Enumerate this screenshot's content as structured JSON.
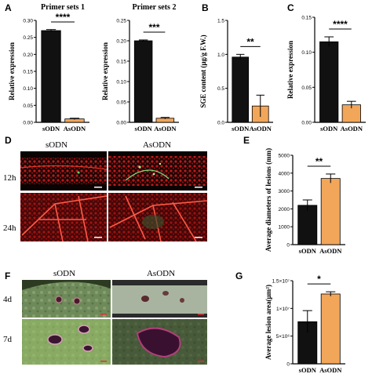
{
  "panel_letters": [
    "A",
    "B",
    "C",
    "D",
    "E",
    "F",
    "G"
  ],
  "colors": {
    "sODN": "#111111",
    "AsODN": "#f2a65a",
    "axis": "#000000"
  },
  "chart_data": [
    {
      "id": "A1",
      "type": "bar",
      "title": "Primer sets 1",
      "ylabel": "Relative expression",
      "xlabel": "",
      "categories": [
        "sODN",
        "AsODN"
      ],
      "values": [
        0.27,
        0.01
      ],
      "errors": [
        0.003,
        0.002
      ],
      "ylim": [
        0,
        0.3
      ],
      "yticks": [
        "0.00",
        "0.05",
        "0.10",
        "0.15",
        "0.20",
        "0.25",
        "0.30"
      ],
      "significance": "****"
    },
    {
      "id": "A2",
      "type": "bar",
      "title": "Primer sets 2",
      "ylabel": "Relative expression",
      "xlabel": "",
      "categories": [
        "sODN",
        "AsODN"
      ],
      "values": [
        0.2,
        0.01
      ],
      "errors": [
        0.002,
        0.002
      ],
      "ylim": [
        0,
        0.25
      ],
      "yticks": [
        "0.00",
        "0.05",
        "0.10",
        "0.15",
        "0.20",
        "0.25"
      ],
      "significance": "***"
    },
    {
      "id": "B",
      "type": "bar",
      "title": "",
      "ylabel": "SGE content (μg/g F.W.)",
      "xlabel": "",
      "categories": [
        "sODN",
        "AsODN"
      ],
      "values": [
        0.96,
        0.24
      ],
      "errors": [
        0.04,
        0.16
      ],
      "ylim": [
        0,
        1.5
      ],
      "yticks": [
        "0.0",
        "0.5",
        "1.0",
        "1.5"
      ],
      "significance": "**"
    },
    {
      "id": "C",
      "type": "bar",
      "title": "",
      "ylabel": "Relative expression",
      "xlabel": "",
      "categories": [
        "sODN",
        "AsODN"
      ],
      "values": [
        0.115,
        0.025
      ],
      "errors": [
        0.007,
        0.005
      ],
      "ylim": [
        0,
        0.15
      ],
      "yticks": [
        "0.00",
        "0.05",
        "0.10",
        "0.15"
      ],
      "significance": "****"
    },
    {
      "id": "F",
      "type": "bar",
      "title": "",
      "ylabel": "Average diameters of lesions (mm)",
      "xlabel": "",
      "categories": [
        "sODN",
        "AsODN"
      ],
      "values": [
        2200,
        3700
      ],
      "errors": [
        300,
        250
      ],
      "ylim": [
        0,
        5000
      ],
      "yticks": [
        "0",
        "1000",
        "2000",
        "3000",
        "4000",
        "5000"
      ],
      "significance": "**"
    },
    {
      "id": "G",
      "type": "bar",
      "title": "",
      "ylabel": "Average lesion area(μm²)",
      "xlabel": "",
      "categories": [
        "sODN",
        "AsODN"
      ],
      "values": [
        7600000,
        12600000
      ],
      "errors": [
        2000000,
        400000
      ],
      "ylim": [
        0,
        15000000
      ],
      "yticks": [
        "0",
        "5×10⁶",
        "1×10⁷",
        "1.5×10⁷"
      ],
      "significance": "*"
    }
  ],
  "panel_d": {
    "columns": [
      "sODN",
      "AsODN"
    ],
    "rows": [
      "12h",
      "24h"
    ]
  },
  "panel_e": {
    "columns": [
      "sODN",
      "AsODN"
    ],
    "rows": [
      "4d",
      "7d"
    ]
  }
}
